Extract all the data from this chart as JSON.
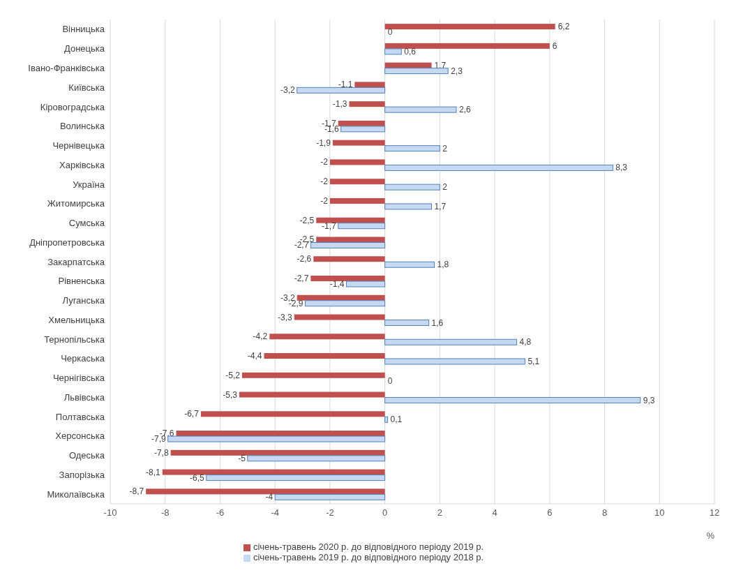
{
  "chart_data": {
    "type": "bar",
    "orientation": "horizontal",
    "categories": [
      "Вінницька",
      "Донецька",
      "Івано-Франківська",
      "Київська",
      "Кіровоградська",
      "Волинська",
      "Чернівецька",
      "Харківська",
      "Україна",
      "Житомирська",
      "Сумська",
      "Дніпропетровська",
      "Закарпатська",
      "Рівненська",
      "Луганська",
      "Хмельницька",
      "Тернопільська",
      "Черкаська",
      "Чернігівська",
      "Львівська",
      "Полтавська",
      "Херсонська",
      "Одеська",
      "Запорізька",
      "Миколаївська"
    ],
    "series": [
      {
        "name": "січень-травень 2020 р. до відповідного періоду 2019 р.",
        "color": "#c0504d",
        "values": [
          6.2,
          6,
          1.7,
          -1.1,
          -1.3,
          -1.7,
          -1.9,
          -2,
          -2,
          -2,
          -2.5,
          -2.5,
          -2.6,
          -2.7,
          -3.2,
          -3.3,
          -4.2,
          -4.4,
          -5.2,
          -5.3,
          -6.7,
          -7.6,
          -7.8,
          -8.1,
          -8.7
        ],
        "value_labels": [
          "6,2",
          "6",
          "1,7",
          "-1,1",
          "-1,3",
          "-1,7",
          "-1,9",
          "-2",
          "-2",
          "-2",
          "-2,5",
          "-2,5",
          "-2,6",
          "-2,7",
          "-3,2",
          "-3,3",
          "-4,2",
          "-4,4",
          "-5,2",
          "-5,3",
          "-6,7",
          "-7,6",
          "-7,8",
          "-8,1",
          "-8,7"
        ]
      },
      {
        "name": "січень-травень 2019 р. до відповідного періоду 2018 р.",
        "color": "#c6d9f1",
        "values": [
          0,
          0.6,
          2.3,
          -3.2,
          2.6,
          -1.6,
          2,
          8.3,
          2,
          1.7,
          -1.7,
          -2.7,
          1.8,
          -1.4,
          -2.9,
          1.6,
          4.8,
          5.1,
          0,
          9.3,
          0.1,
          -7.9,
          -5,
          -6.5,
          -4
        ],
        "value_labels": [
          "0",
          "0,6",
          "2,3",
          "-3,2",
          "2,6",
          "-1,6",
          "2",
          "8,3",
          "2",
          "1,7",
          "-1,7",
          "-2,7",
          "1,8",
          "-1,4",
          "-2,9",
          "1,6",
          "4,8",
          "5,1",
          "0",
          "9,3",
          "0,1",
          "-7,9",
          "-5",
          "-6,5",
          "-4"
        ]
      }
    ],
    "xlim": [
      -10,
      12
    ],
    "xticks": [
      -10,
      -8,
      -6,
      -4,
      -2,
      0,
      2,
      4,
      6,
      8,
      10,
      12
    ],
    "xlabel": "%",
    "grid": "x",
    "legend": "bottom"
  }
}
